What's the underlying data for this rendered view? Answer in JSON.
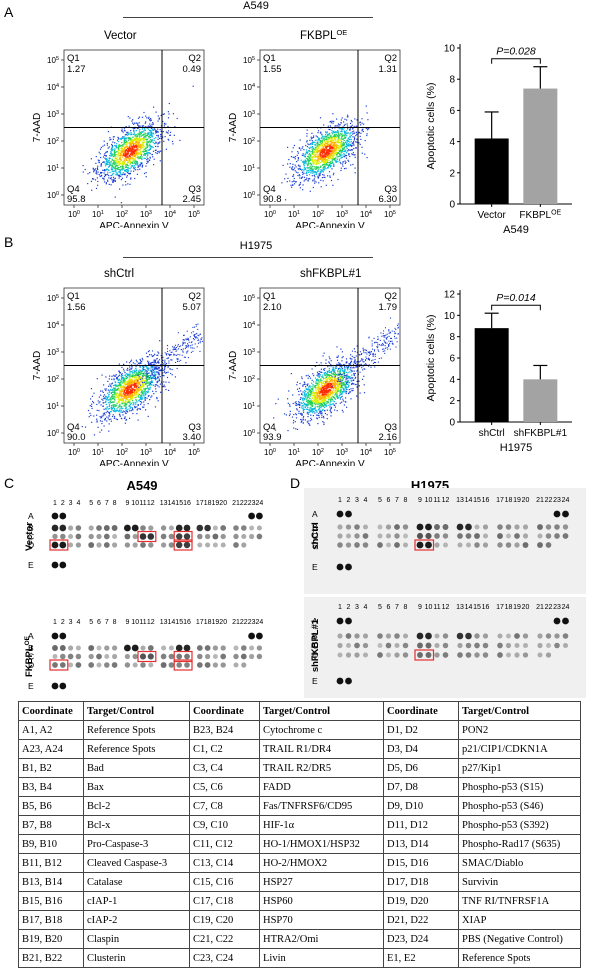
{
  "panel_a": {
    "letter": "A",
    "cell_line": "A549",
    "flow_plots": [
      {
        "title": "Vector",
        "title_sup": "",
        "q1_label": "Q1",
        "q1": "1.27",
        "q2_label": "Q2",
        "q2": "0.49",
        "q3_label": "Q3",
        "q3": "2.45",
        "q4_label": "Q4",
        "q4": "95.8"
      },
      {
        "title": "FKBPL",
        "title_sup": "OE",
        "q1_label": "Q1",
        "q1": "1.55",
        "q2_label": "Q2",
        "q2": "1.31",
        "q3_label": "Q3",
        "q3": "6.30",
        "q4_label": "Q4",
        "q4": "90.8"
      }
    ],
    "xlabel": "APC-Annexin V",
    "ylabel": "7-AAD",
    "xticks": [
      "10",
      "10",
      "10",
      "10",
      "10",
      "10"
    ],
    "xtick_exps": [
      "0",
      "1",
      "2",
      "3",
      "4",
      "5"
    ],
    "yticks": [
      "10",
      "10",
      "10",
      "10",
      "10",
      "10"
    ],
    "ytick_exps": [
      "0",
      "1",
      "2",
      "3",
      "4",
      "5"
    ]
  },
  "panel_b": {
    "letter": "B",
    "cell_line": "H1975",
    "flow_plots": [
      {
        "title": "shCtrl",
        "title_sup": "",
        "q1_label": "Q1",
        "q1": "1.56",
        "q2_label": "Q2",
        "q2": "5.07",
        "q3_label": "Q3",
        "q3": "3.40",
        "q4_label": "Q4",
        "q4": "90.0"
      },
      {
        "title": "shFKBPL#1",
        "title_sup": "",
        "q1_label": "Q1",
        "q1": "2.10",
        "q2_label": "Q2",
        "q2": "1.79",
        "q3_label": "Q3",
        "q3": "2.16",
        "q4_label": "Q4",
        "q4": "93.9"
      }
    ],
    "xlabel": "APC-Annexin V",
    "ylabel": "7-AAD"
  },
  "chart_data": [
    {
      "type": "bar",
      "categories": [
        "Vector",
        "FKBPLOE"
      ],
      "category_labels": [
        {
          "main": "Vector",
          "sup": ""
        },
        {
          "main": "FKBPL",
          "sup": "OE"
        }
      ],
      "values": [
        4.2,
        7.4
      ],
      "errors": [
        1.7,
        1.4
      ],
      "colors": [
        "#000000",
        "#a3a3a3"
      ],
      "ylabel": "Apoptotic cells (%)",
      "xlabel": "A549",
      "ylim": [
        0,
        10
      ],
      "yticks": [
        0,
        2,
        4,
        6,
        8,
        10
      ],
      "annotation": "P=0.028"
    },
    {
      "type": "bar",
      "categories": [
        "shCtrl",
        "shFKBPL#1"
      ],
      "category_labels": [
        {
          "main": "shCtrl",
          "sup": ""
        },
        {
          "main": "shFKBPL#1",
          "sup": ""
        }
      ],
      "values": [
        8.8,
        4.0
      ],
      "errors": [
        1.4,
        1.3
      ],
      "colors": [
        "#000000",
        "#a3a3a3"
      ],
      "ylabel": "Apoptotic cells (%)",
      "xlabel": "H1975",
      "ylim": [
        0,
        12
      ],
      "yticks": [
        0,
        2,
        4,
        6,
        8,
        10,
        12
      ],
      "annotation": "P=0.014"
    }
  ],
  "panel_c": {
    "letter": "C",
    "title": "A549",
    "columns_left": [
      "1",
      "2",
      "3",
      "4"
    ],
    "columns_mid": [
      "5",
      "6",
      "7",
      "8"
    ],
    "columns_mid2": [
      "9",
      "10",
      "11",
      "12"
    ],
    "columns_mid3": [
      "13",
      "14",
      "15",
      "16"
    ],
    "columns_mid4": [
      "17",
      "18",
      "19",
      "20"
    ],
    "columns_right": [
      "21",
      "22",
      "23",
      "24"
    ],
    "rows": [
      "A",
      "B",
      "C",
      "D",
      "E"
    ],
    "top_label": "Vector",
    "bottom_label": "FKBPL",
    "bottom_label_sup": "OE"
  },
  "panel_d": {
    "letter": "D",
    "title": "H1975",
    "rows": [
      "A",
      "B",
      "C",
      "D",
      "E"
    ],
    "top_label": "shCtrl",
    "bottom_label": "shFKBPL#1"
  },
  "key_table": {
    "headers": [
      "Coordinate",
      "Target/Control",
      "Coordinate",
      "Target/Control",
      "Coordinate",
      "Target/Control"
    ],
    "rows": [
      [
        "A1, A2",
        "Reference Spots",
        "B23, B24",
        "Cytochrome c",
        "D1, D2",
        "PON2"
      ],
      [
        "A23, A24",
        "Reference Spots",
        "C1, C2",
        "TRAIL R1/DR4",
        "D3, D4",
        "p21/CIP1/CDKN1A"
      ],
      [
        "B1, B2",
        "Bad",
        "C3, C4",
        "TRAIL R2/DR5",
        "D5, D6",
        "p27/Kip1"
      ],
      [
        "B3, B4",
        "Bax",
        "C5, C6",
        "FADD",
        "D7, D8",
        "Phospho-p53 (S15)"
      ],
      [
        "B5, B6",
        "Bcl-2",
        "C7, C8",
        "Fas/TNFRSF6/CD95",
        "D9, D10",
        "Phospho-p53 (S46)"
      ],
      [
        "B7, B8",
        "Bcl-x",
        "C9, C10",
        "HIF-1α",
        "D11, D12",
        "Phospho-p53 (S392)"
      ],
      [
        "B9, B10",
        "Pro-Caspase-3",
        "C11, C12",
        "HO-1/HMOX1/HSP32",
        "D13, D14",
        "Phospho-Rad17 (S635)"
      ],
      [
        "B11, B12",
        "Cleaved Caspase-3",
        "C13, C14",
        "HO-2/HMOX2",
        "D15, D16",
        "SMAC/Diablo"
      ],
      [
        "B13, B14",
        "Catalase",
        "C15, C16",
        "HSP27",
        "D17, D18",
        "Survivin"
      ],
      [
        "B15, B16",
        "cIAP-1",
        "C17, C18",
        "HSP60",
        "D19, D20",
        "TNF RI/TNFRSF1A"
      ],
      [
        "B17, B18",
        "cIAP-2",
        "C19, C20",
        "HSP70",
        "D21, D22",
        "XIAP"
      ],
      [
        "B19, B20",
        "Claspin",
        "C21, C22",
        "HTRA2/Omi",
        "D23, D24",
        "PBS (Negative Control)"
      ],
      [
        "B21, B22",
        "Clusterin",
        "C23, C24",
        "Livin",
        "E1, E2",
        "Reference Spots"
      ]
    ]
  }
}
